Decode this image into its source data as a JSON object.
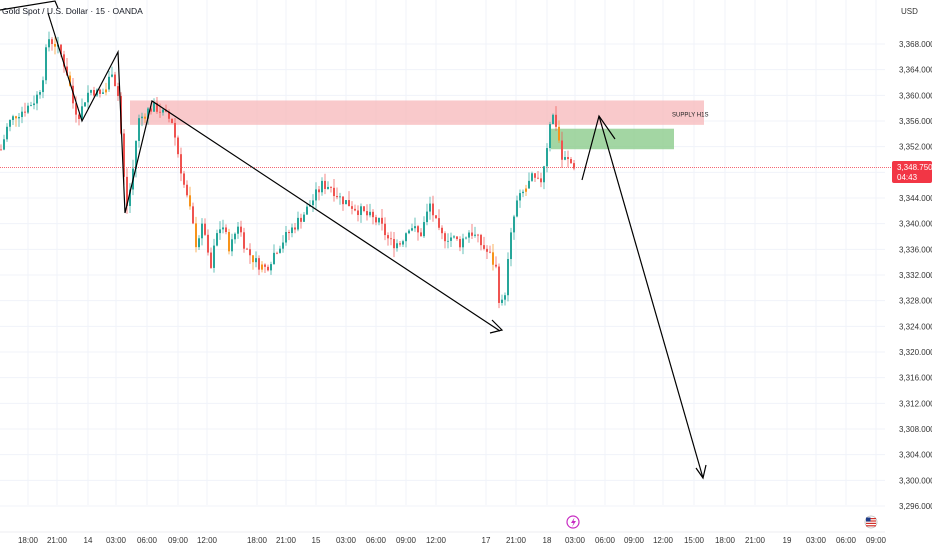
{
  "header": {
    "title": "Gold Spot / U.S. Dollar · 15 · OANDA",
    "currency": "USD"
  },
  "price_badge": {
    "price": "3,348.750",
    "countdown": "04:43"
  },
  "zones": {
    "supply_label": "SUPPLY H1S"
  },
  "colors": {
    "up": "#26a69a",
    "down": "#ef5350",
    "supply_zone": "#f7b7b9",
    "demand_zone": "#8ccc8c",
    "badge": "#f23645",
    "orange": "#f7931a"
  },
  "icons": {
    "event_icon": "lightning-icon",
    "flag_icon": "us-flag-icon"
  },
  "chart_data": {
    "type": "candlestick",
    "title": "Gold Spot / U.S. Dollar · 15 · OANDA",
    "ylim": [
      3294,
      3372
    ],
    "yticks": [
      "3,296.000",
      "3,300.000",
      "3,304.000",
      "3,308.000",
      "3,312.000",
      "3,316.000",
      "3,320.000",
      "3,324.000",
      "3,328.000",
      "3,332.000",
      "3,336.000",
      "3,340.000",
      "3,344.000",
      "3,348.000",
      "3,352.000",
      "3,356.000",
      "3,360.000",
      "3,364.000",
      "3,368.000"
    ],
    "ytick_values": [
      3296,
      3300,
      3304,
      3308,
      3312,
      3316,
      3320,
      3324,
      3328,
      3332,
      3336,
      3340,
      3344,
      3348,
      3352,
      3356,
      3360,
      3364,
      3368
    ],
    "xticks": [
      "18:00",
      "21:00",
      "14",
      "03:00",
      "06:00",
      "09:00",
      "12:00",
      "18:00",
      "21:00",
      "15",
      "03:00",
      "06:00",
      "09:00",
      "12:00",
      "17",
      "21:00",
      "18",
      "03:00",
      "06:00",
      "09:00",
      "12:00",
      "15:00",
      "18:00",
      "21:00",
      "19",
      "03:00",
      "06:00",
      "09:00"
    ],
    "price_path": [
      [
        0,
        3351
      ],
      [
        8,
        3355.5
      ],
      [
        16,
        3357
      ],
      [
        26,
        3358
      ],
      [
        36,
        3359.5
      ],
      [
        42,
        3362
      ],
      [
        48,
        3369
      ],
      [
        55,
        3368
      ],
      [
        62,
        3366
      ],
      [
        68,
        3363
      ],
      [
        74,
        3358
      ],
      [
        80,
        3357
      ],
      [
        86,
        3360
      ],
      [
        92,
        3361
      ],
      [
        100,
        3360
      ],
      [
        106,
        3361
      ],
      [
        112,
        3364
      ],
      [
        118,
        3360
      ],
      [
        122,
        3352
      ],
      [
        126,
        3342
      ],
      [
        132,
        3347
      ],
      [
        138,
        3356
      ],
      [
        144,
        3357
      ],
      [
        150,
        3358
      ],
      [
        158,
        3358
      ],
      [
        164,
        3357
      ],
      [
        172,
        3356
      ],
      [
        178,
        3351
      ],
      [
        184,
        3346
      ],
      [
        190,
        3342
      ],
      [
        196,
        3337
      ],
      [
        204,
        3340
      ],
      [
        210,
        3332
      ],
      [
        216,
        3338
      ],
      [
        222,
        3340
      ],
      [
        230,
        3336
      ],
      [
        238,
        3340
      ],
      [
        246,
        3336
      ],
      [
        256,
        3334
      ],
      [
        266,
        3333
      ],
      [
        276,
        3336
      ],
      [
        286,
        3338
      ],
      [
        296,
        3340
      ],
      [
        306,
        3342
      ],
      [
        314,
        3344
      ],
      [
        322,
        3346
      ],
      [
        330,
        3346
      ],
      [
        340,
        3344
      ],
      [
        350,
        3343
      ],
      [
        360,
        3342
      ],
      [
        370,
        3341
      ],
      [
        380,
        3340
      ],
      [
        390,
        3337
      ],
      [
        400,
        3337
      ],
      [
        410,
        3340
      ],
      [
        420,
        3338
      ],
      [
        430,
        3343
      ],
      [
        440,
        3338
      ],
      [
        450,
        3338
      ],
      [
        460,
        3337
      ],
      [
        470,
        3339
      ],
      [
        480,
        3337
      ],
      [
        490,
        3335
      ],
      [
        496,
        3333
      ],
      [
        500,
        3327
      ],
      [
        504,
        3328
      ],
      [
        510,
        3337
      ],
      [
        516,
        3343
      ],
      [
        524,
        3345
      ],
      [
        532,
        3347
      ],
      [
        540,
        3346
      ],
      [
        546,
        3351
      ],
      [
        550,
        3356
      ],
      [
        554,
        3357
      ],
      [
        558,
        3354
      ],
      [
        562,
        3350
      ],
      [
        566,
        3350
      ],
      [
        570,
        3349.5
      ],
      [
        575,
        3349
      ]
    ],
    "supply_zone": {
      "price_top": 3359.2,
      "price_bottom": 3355.4,
      "label": "SUPPLY H1S"
    },
    "demand_zone": {
      "price_top": 3354.8,
      "price_bottom": 3351.6
    },
    "projection": [
      [
        3357,
        "up"
      ],
      [
        3300,
        "down"
      ]
    ],
    "last_price": 3348.75
  }
}
